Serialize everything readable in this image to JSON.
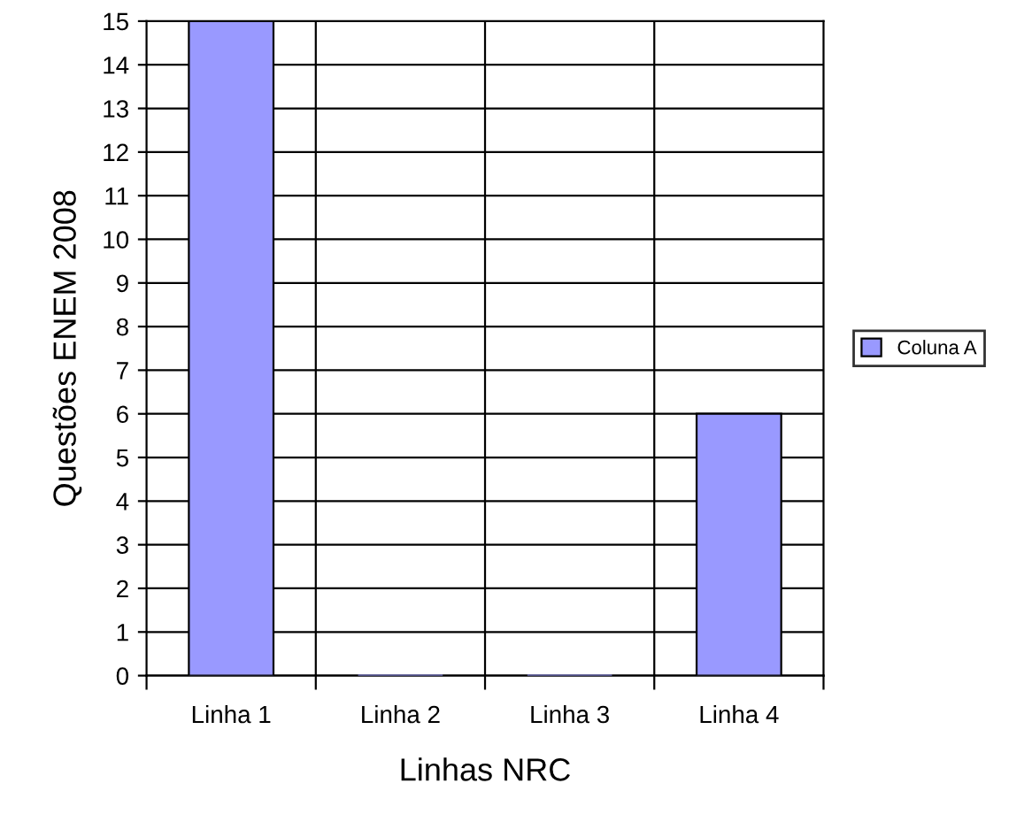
{
  "chart_data": {
    "type": "bar",
    "xlabel": "Linhas NRC",
    "ylabel": "Questões ENEM 2008",
    "categories": [
      "Linha 1",
      "Linha 2",
      "Linha 3",
      "Linha 4"
    ],
    "series": [
      {
        "name": "Coluna A",
        "color": "#9999ff",
        "values": [
          15,
          0,
          0,
          6
        ]
      }
    ],
    "ylim": [
      0,
      15
    ],
    "yticks": [
      0,
      1,
      2,
      3,
      4,
      5,
      6,
      7,
      8,
      9,
      10,
      11,
      12,
      13,
      14,
      15
    ],
    "grid": true,
    "legend": "right"
  }
}
